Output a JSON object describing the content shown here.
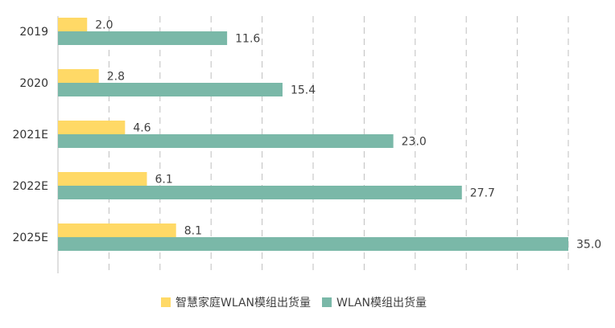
{
  "chart_data": {
    "type": "bar",
    "orientation": "horizontal",
    "categories": [
      "2019",
      "2020",
      "2021E",
      "2022E",
      "2025E"
    ],
    "series": [
      {
        "name": "智慧家庭WLAN模组出货量",
        "values": [
          2.0,
          2.8,
          4.6,
          6.1,
          8.1
        ],
        "labels": [
          "2.0",
          "2.8",
          "4.6",
          "6.1",
          "8.1"
        ],
        "color": "#FFD966"
      },
      {
        "name": "WLAN模组出货量",
        "values": [
          11.6,
          15.4,
          23.0,
          27.7,
          35.0
        ],
        "labels": [
          "11.6",
          "15.4",
          "23.0",
          "27.7",
          "35.0"
        ],
        "color": "#7AB8A8"
      }
    ],
    "xlim": [
      0,
      35
    ],
    "grid": true,
    "legend_position": "bottom"
  }
}
